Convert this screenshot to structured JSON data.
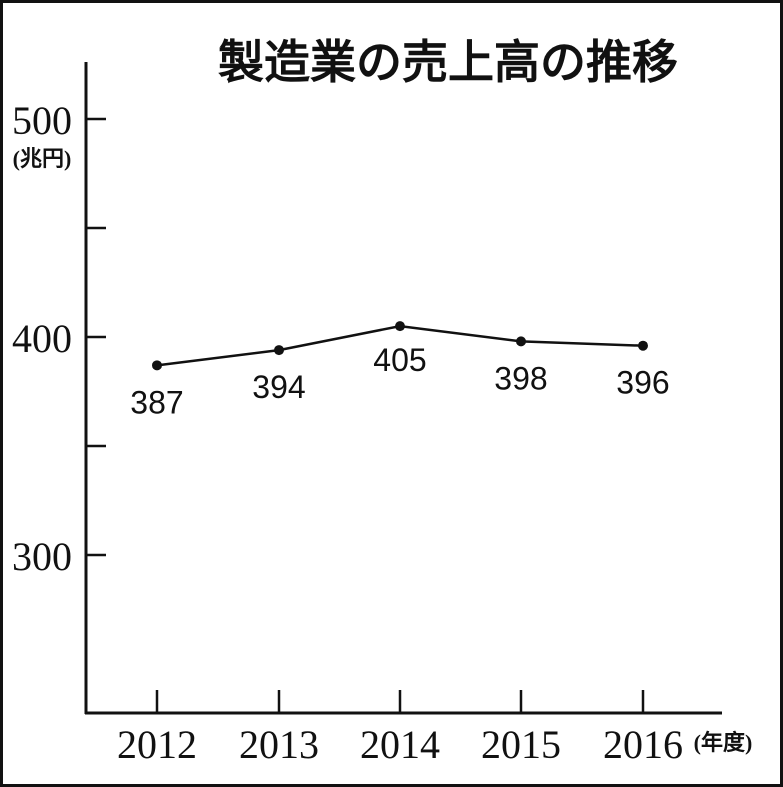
{
  "chart_data": {
    "type": "line",
    "title": "製造業の売上高の推移",
    "ylabel": "(兆円)",
    "xlabel": "(年度)",
    "categories": [
      "2012",
      "2013",
      "2014",
      "2015",
      "2016"
    ],
    "series": [
      {
        "values": [
          387,
          394,
          405,
          398,
          396
        ]
      }
    ],
    "data_labels": [
      "387",
      "394",
      "405",
      "398",
      "396"
    ],
    "yticks": [
      300,
      350,
      400,
      450,
      500
    ],
    "ytick_labels": [
      "300",
      "400",
      "500"
    ],
    "ylim": [
      227,
      526
    ],
    "grid": false,
    "colors": {
      "line": "#111111",
      "text": "#111111"
    }
  }
}
